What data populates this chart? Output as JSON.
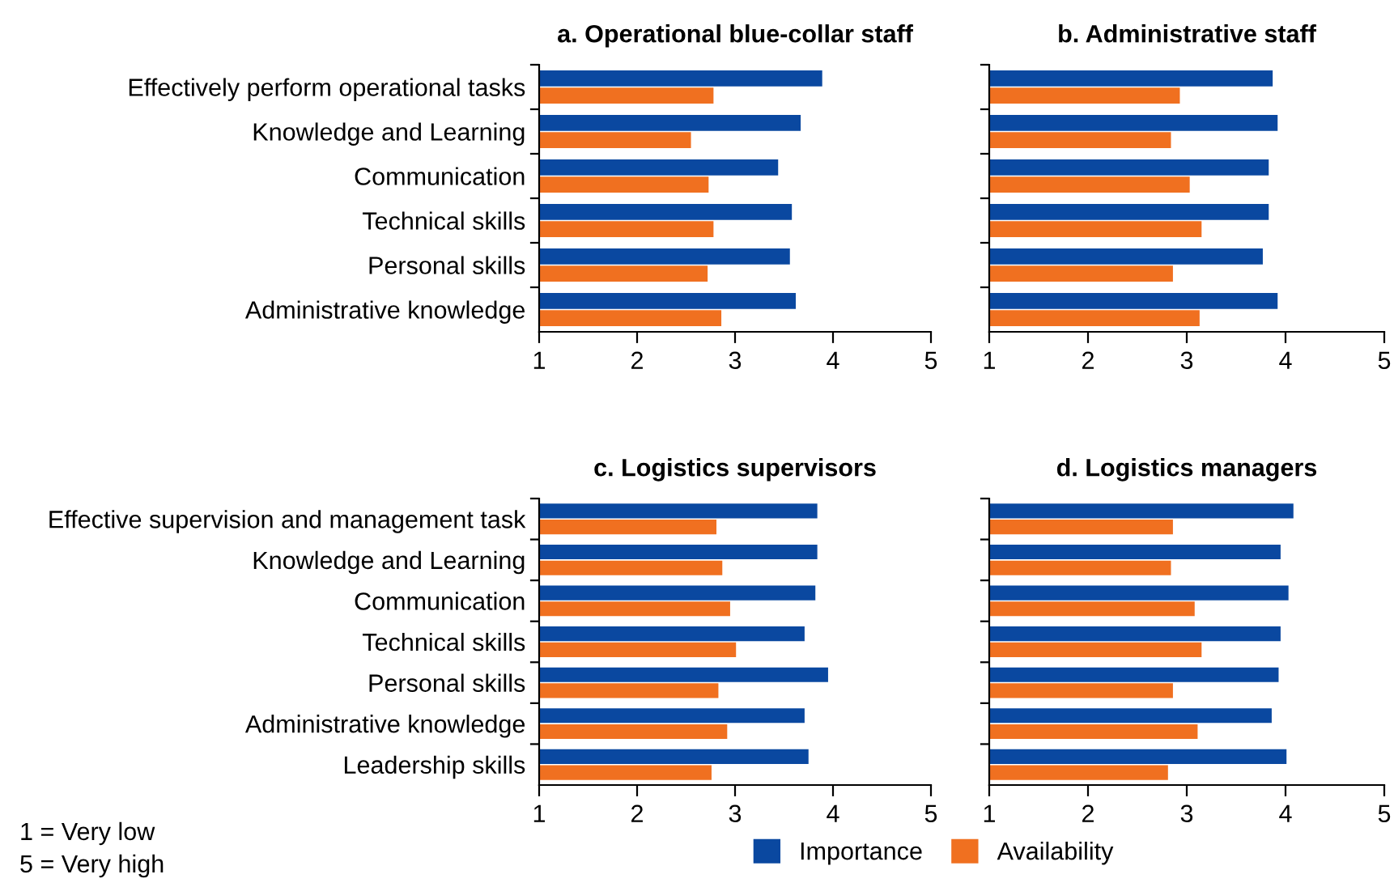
{
  "chart_data": [
    {
      "type": "bar",
      "orientation": "horizontal",
      "title": "a. Operational blue-collar staff",
      "categories": [
        "Effectively perform operational tasks",
        "Knowledge and Learning",
        "Communication",
        "Technical skills",
        "Personal skills",
        "Administrative knowledge"
      ],
      "series": [
        {
          "name": "Importance",
          "color": "#0a48a0",
          "values": [
            3.89,
            3.67,
            3.44,
            3.58,
            3.56,
            3.62
          ]
        },
        {
          "name": "Availability",
          "color": "#f07020",
          "values": [
            2.78,
            2.55,
            2.73,
            2.78,
            2.72,
            2.86
          ]
        }
      ],
      "xlim": [
        1,
        5
      ],
      "xticks": [
        1,
        2,
        3,
        4,
        5
      ],
      "grid": false,
      "legend": "bottom"
    },
    {
      "type": "bar",
      "orientation": "horizontal",
      "title": "b. Administrative staff",
      "categories": [
        null,
        null,
        null,
        null,
        null,
        null
      ],
      "series": [
        {
          "color": "#0a48a0",
          "values": [
            3.87,
            3.92,
            3.83,
            3.83,
            3.77,
            3.92
          ]
        },
        {
          "color": "#f07020",
          "values": [
            2.93,
            2.84,
            3.03,
            3.15,
            2.86,
            3.13
          ]
        }
      ],
      "xlim": [
        1,
        5
      ],
      "xticks": [
        1,
        2,
        3,
        4,
        5
      ],
      "grid": false,
      "tick_labels": "x"
    },
    {
      "type": "bar",
      "orientation": "horizontal",
      "title": "c. Logistics supervisors",
      "categories": [
        "Effective supervision and management task",
        "Knowledge and Learning",
        "Communication",
        "Technical skills",
        "Personal skills",
        "Administrative knowledge",
        "Leadership skills"
      ],
      "series": [
        {
          "color": "#0a48a0",
          "values": [
            3.84,
            3.84,
            3.82,
            3.71,
            3.95,
            3.71,
            3.75
          ]
        },
        {
          "color": "#f07020",
          "values": [
            2.81,
            2.87,
            2.95,
            3.01,
            2.83,
            2.92,
            2.76
          ]
        }
      ],
      "xlim": [
        1,
        5
      ],
      "xticks": [
        1,
        2,
        3,
        4,
        5
      ],
      "grid": false,
      "annotations": [
        "1 = Very low",
        "5 = Very high"
      ]
    },
    {
      "type": "bar",
      "orientation": "horizontal",
      "title": "d. Logistics managers",
      "categories": [
        null,
        null,
        null,
        null,
        null,
        null,
        null
      ],
      "series": [
        {
          "color": "#0a48a0",
          "values": [
            4.08,
            3.95,
            4.03,
            3.95,
            3.93,
            3.86,
            4.01
          ]
        },
        {
          "color": "#f07020",
          "values": [
            2.86,
            2.84,
            3.08,
            3.15,
            2.86,
            3.11,
            2.81
          ]
        }
      ],
      "xlim": [
        1,
        5
      ],
      "xticks": [
        1,
        2,
        3,
        4,
        5
      ],
      "grid": false,
      "tick_labels": "x"
    }
  ]
}
